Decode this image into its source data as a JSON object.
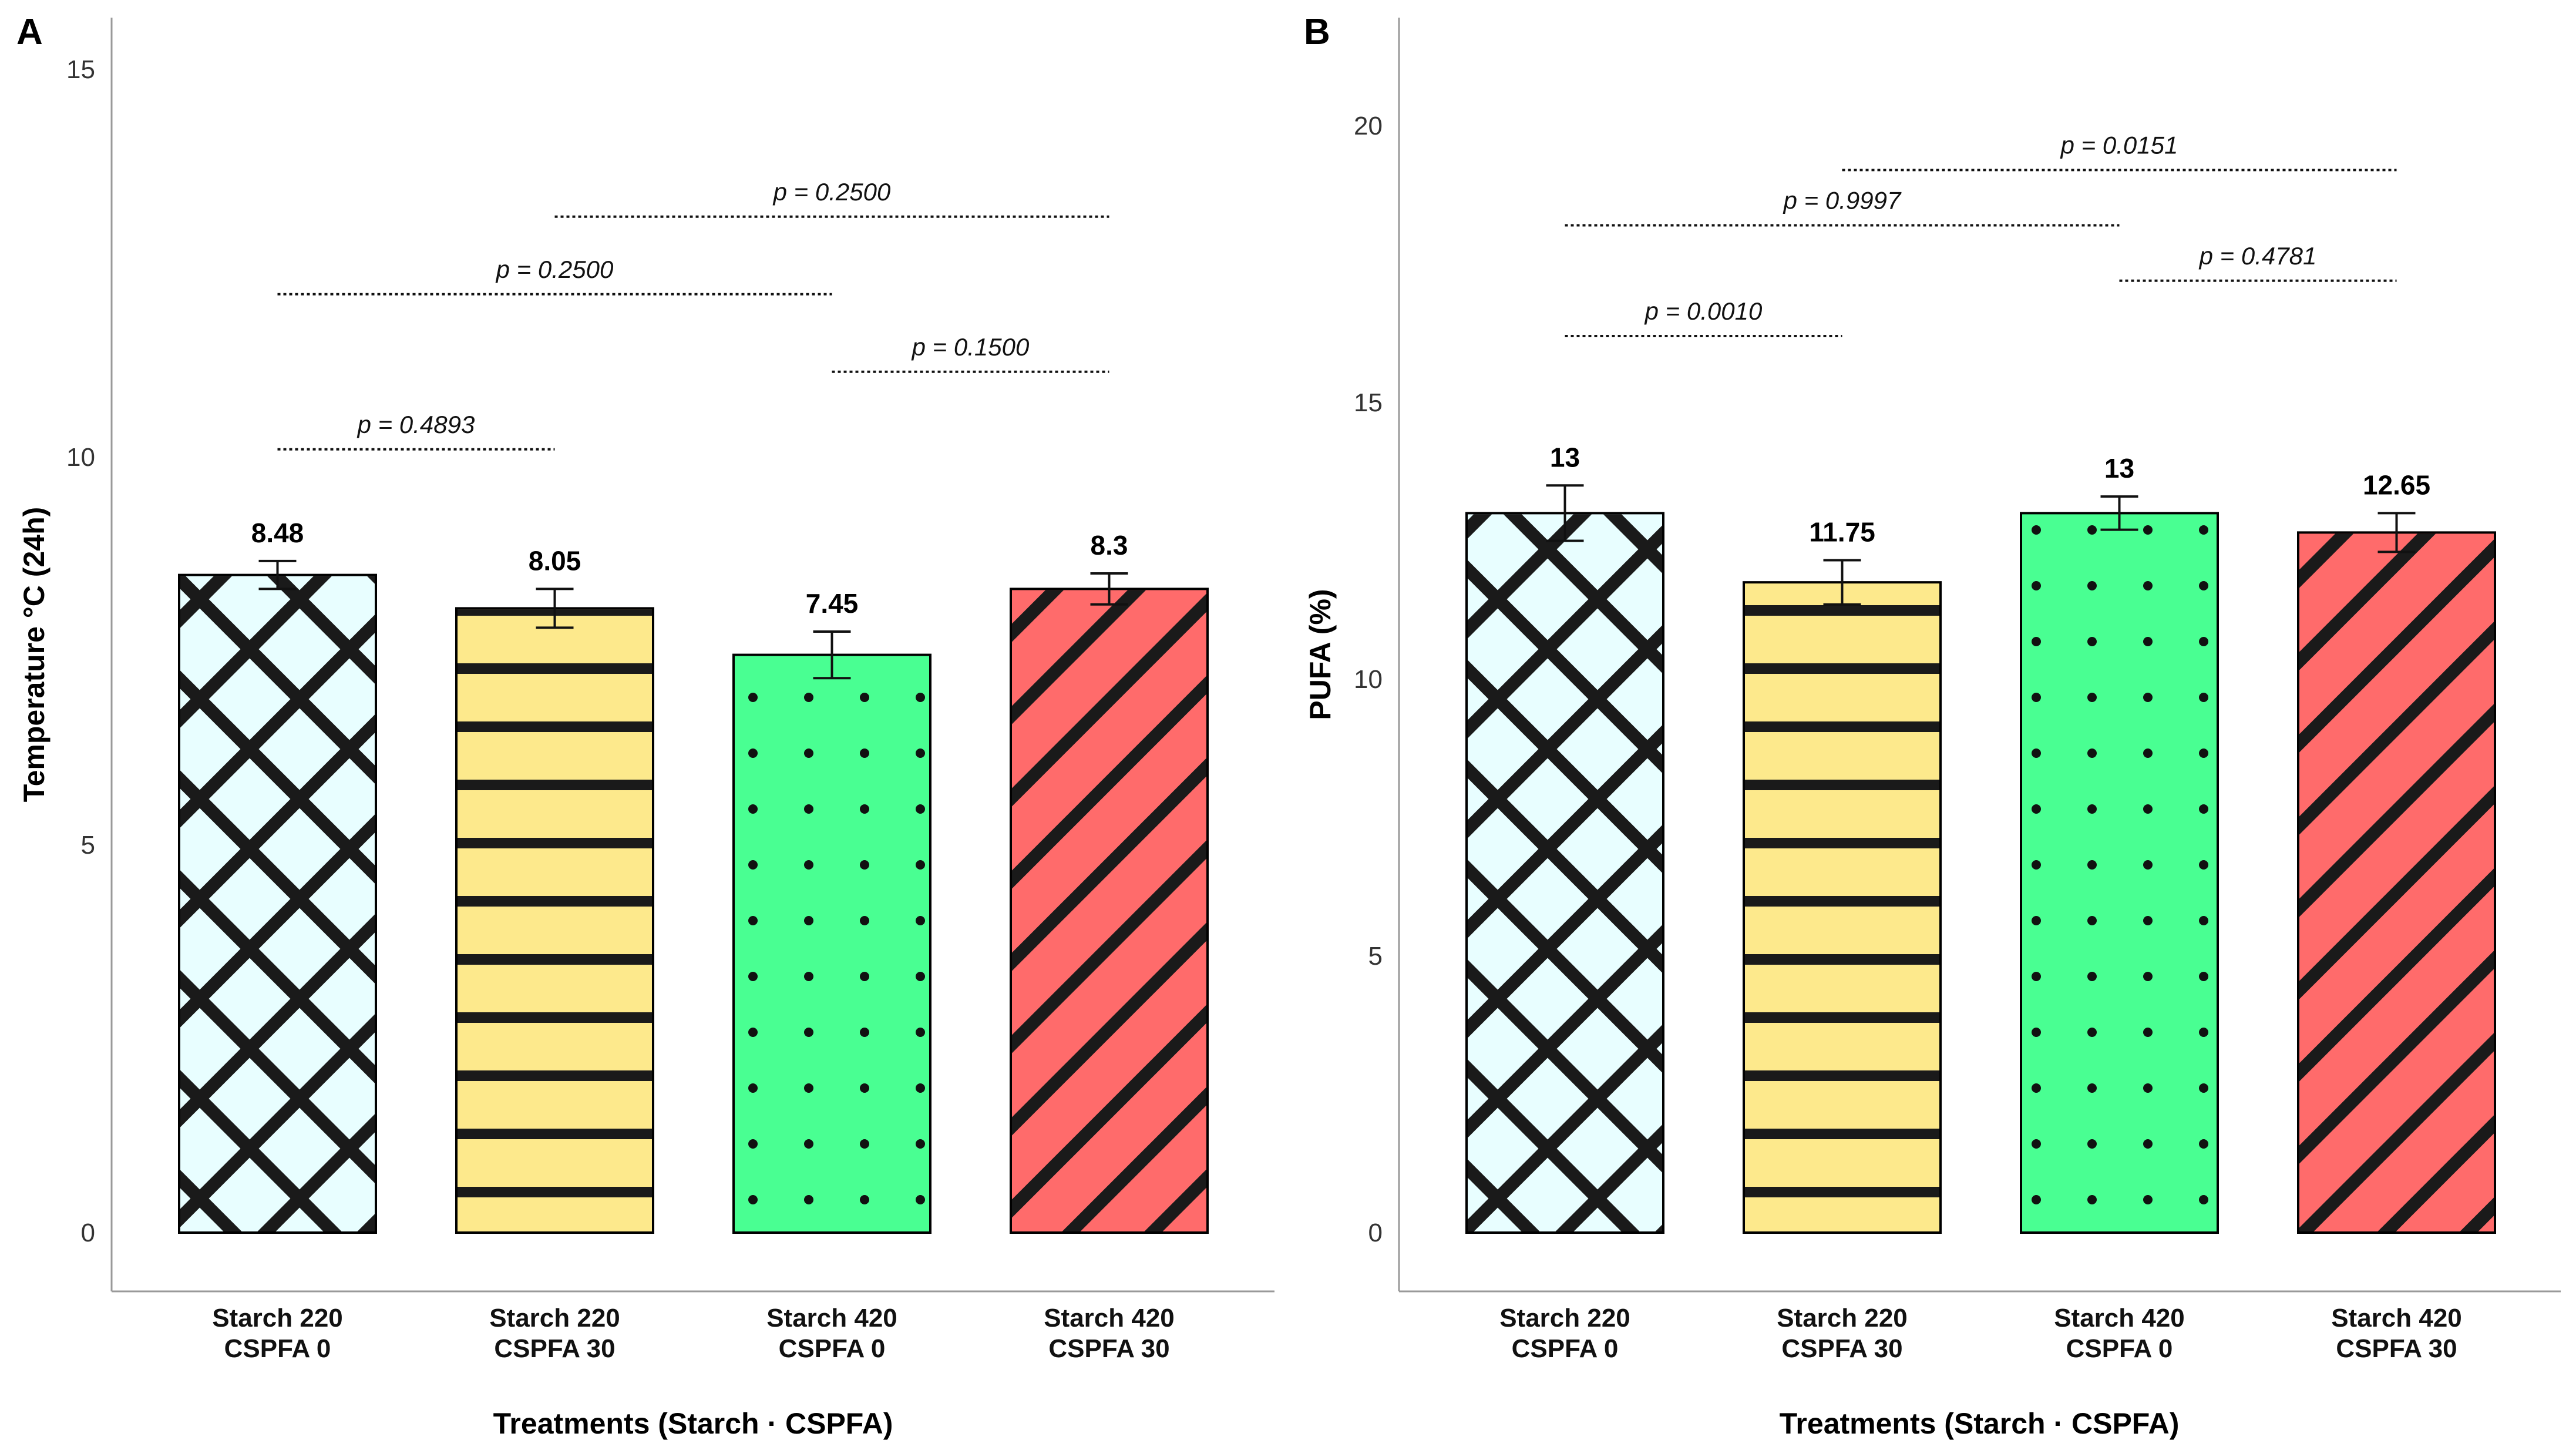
{
  "chart_data": [
    {
      "panel": "A",
      "type": "bar",
      "ylabel": "Temperature °C (24h)",
      "xlabel": "Treatments (Starch · CSPFA)",
      "ylim": [
        0,
        15
      ],
      "yticks": [
        "0",
        "5",
        "10",
        "15"
      ],
      "categories": [
        [
          "Starch 220",
          "CSPFA 0"
        ],
        [
          "Starch 220",
          "CSPFA 30"
        ],
        [
          "Starch 420",
          "CSPFA 0"
        ],
        [
          "Starch 420",
          "CSPFA 30"
        ]
      ],
      "values": [
        8.48,
        8.05,
        7.45,
        8.3
      ],
      "value_labels": [
        "8.48",
        "8.05",
        "7.45",
        "8.3"
      ],
      "errors": [
        0.18,
        0.25,
        0.3,
        0.2
      ],
      "comparisons": [
        {
          "from": 0,
          "to": 1,
          "y": 10.1,
          "label": "p = 0.4893"
        },
        {
          "from": 2,
          "to": 3,
          "y": 11.1,
          "label": "p = 0.1500"
        },
        {
          "from": 0,
          "to": 2,
          "y": 12.1,
          "label": "p = 0.2500"
        },
        {
          "from": 1,
          "to": 3,
          "y": 13.1,
          "label": "p = 0.2500"
        }
      ]
    },
    {
      "panel": "B",
      "type": "bar",
      "ylabel": "PUFA (%)",
      "xlabel": "Treatments (Starch · CSPFA)",
      "ylim": [
        0,
        22
      ],
      "yticks": [
        "0",
        "5",
        "10",
        "15",
        "20"
      ],
      "categories": [
        [
          "Starch 220",
          "CSPFA 0"
        ],
        [
          "Starch 220",
          "CSPFA 30"
        ],
        [
          "Starch 420",
          "CSPFA 0"
        ],
        [
          "Starch 420",
          "CSPFA 30"
        ]
      ],
      "values": [
        13,
        11.75,
        13,
        12.65
      ],
      "value_labels": [
        "13",
        "11.75",
        "13",
        "12.65"
      ],
      "errors": [
        0.5,
        0.4,
        0.3,
        0.35
      ],
      "comparisons": [
        {
          "from": 0,
          "to": 1,
          "y": 16.2,
          "label": "p = 0.0010"
        },
        {
          "from": 2,
          "to": 3,
          "y": 17.2,
          "label": "p = 0.4781"
        },
        {
          "from": 0,
          "to": 2,
          "y": 18.2,
          "label": "p = 0.9997"
        },
        {
          "from": 1,
          "to": 3,
          "y": 19.2,
          "label": "p = 0.0151"
        }
      ]
    }
  ],
  "colors": [
    "#e8feff",
    "#fde98c",
    "#49ff92",
    "#ff6b6b"
  ],
  "patterns": [
    "crosshatch",
    "horizontal-stripes",
    "dots",
    "diagonal-stripes"
  ]
}
